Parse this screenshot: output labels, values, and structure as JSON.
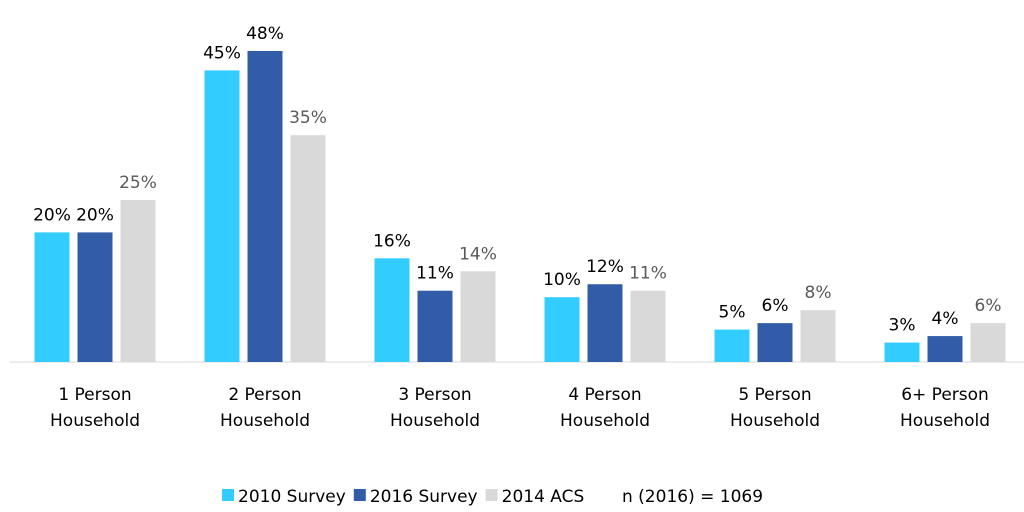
{
  "chart_data": {
    "type": "bar",
    "categories": [
      "1 Person Household",
      "2 Person Household",
      "3 Person Household",
      "4 Person Household",
      "5 Person Household",
      "6+ Person Household"
    ],
    "series": [
      {
        "name": "2010 Survey",
        "color": "#33ccff",
        "label_color": "#000000",
        "values": [
          20,
          45,
          16,
          10,
          5,
          3
        ],
        "value_labels": [
          "20%",
          "45%",
          "16%",
          "10%",
          "5%",
          "3%"
        ]
      },
      {
        "name": "2016 Survey",
        "color": "#335ca8",
        "label_color": "#000000",
        "values": [
          20,
          48,
          11,
          12,
          6,
          4
        ],
        "value_labels": [
          "20%",
          "48%",
          "11%",
          "12%",
          "6%",
          "4%"
        ]
      },
      {
        "name": "2014 ACS",
        "color": "#d9d9d9",
        "label_color": "#595959",
        "values": [
          25,
          35,
          14,
          11,
          8,
          6
        ],
        "value_labels": [
          "25%",
          "35%",
          "14%",
          "11%",
          "8%",
          "6%"
        ]
      }
    ],
    "ylim": [
      0,
      55
    ],
    "annotation": "n (2016) = 1069"
  }
}
